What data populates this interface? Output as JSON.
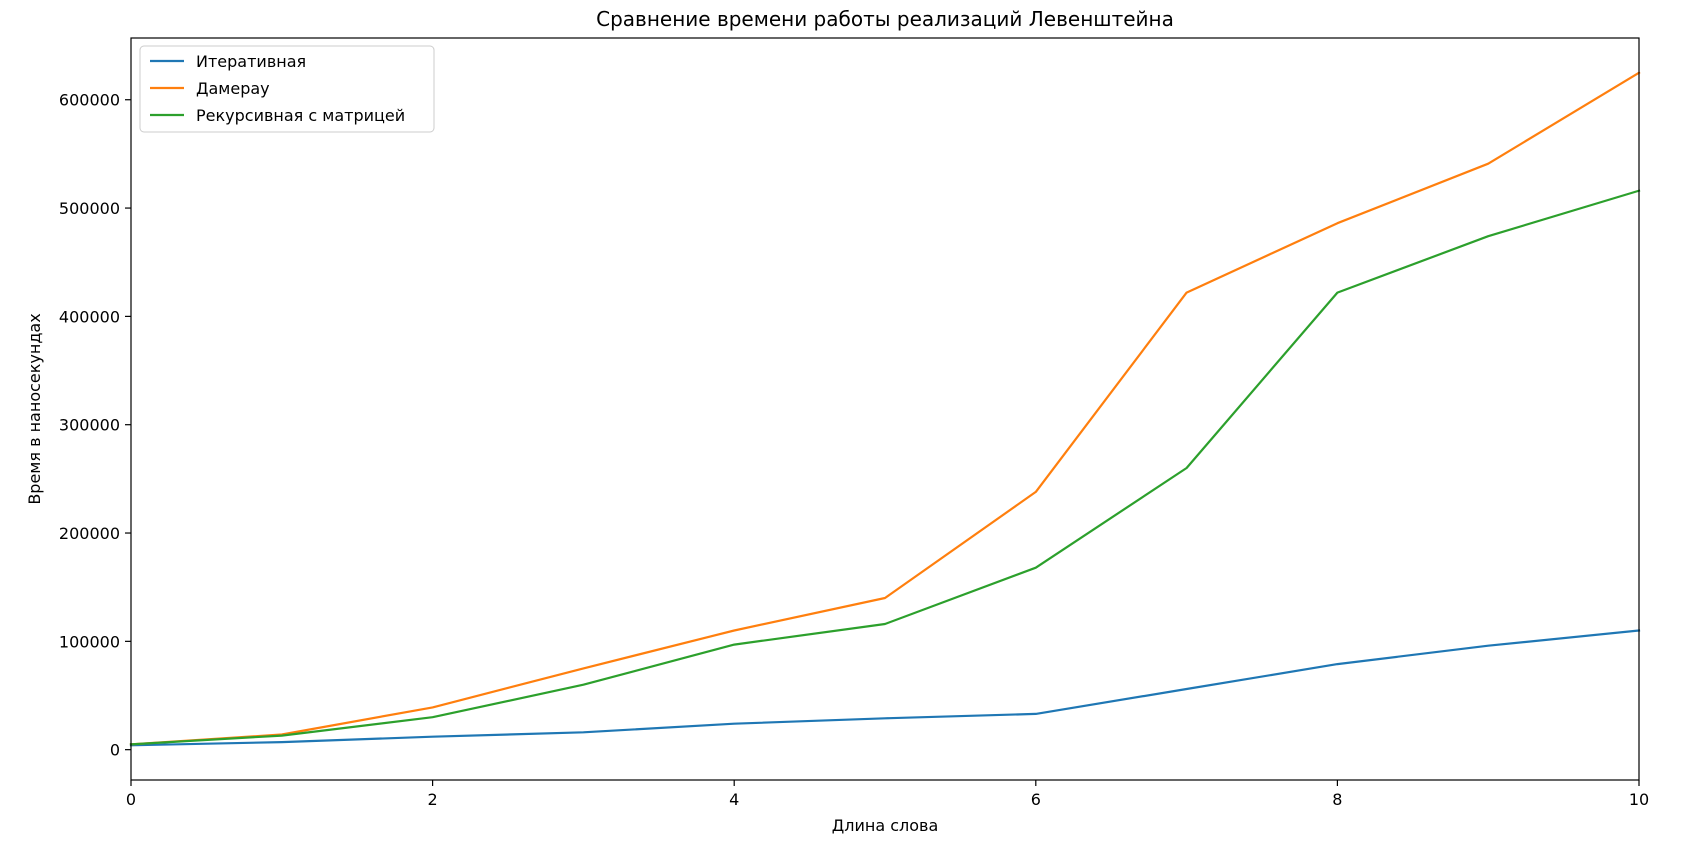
{
  "chart_data": {
    "type": "line",
    "title": "Сравнение времени работы реализаций Левенштейна",
    "xlabel": "Длина слова",
    "ylabel": "Время в наносекундах",
    "xlim": [
      0,
      10
    ],
    "ylim": [
      -28000,
      657000
    ],
    "xticks": [
      0,
      2,
      4,
      6,
      8,
      10
    ],
    "yticks": [
      0,
      100000,
      200000,
      300000,
      400000,
      500000,
      600000
    ],
    "grid": false,
    "legend_position": "upper-left",
    "x": [
      0,
      1,
      2,
      3,
      4,
      5,
      6,
      7,
      8,
      9,
      10
    ],
    "series": [
      {
        "name": "Итеративная",
        "color": "#1f77b4",
        "values": [
          4000,
          7000,
          12000,
          16000,
          24000,
          29000,
          33000,
          56000,
          79000,
          96000,
          110000
        ]
      },
      {
        "name": "Дамерау",
        "color": "#ff7f0e",
        "values": [
          5000,
          14000,
          39000,
          75000,
          110000,
          140000,
          238000,
          422000,
          486000,
          541000,
          625000
        ]
      },
      {
        "name": "Рекурсивная с матрицей",
        "color": "#2ca02c",
        "values": [
          5000,
          13000,
          30000,
          60000,
          97000,
          116000,
          168000,
          260000,
          422000,
          474000,
          516000
        ]
      }
    ]
  }
}
